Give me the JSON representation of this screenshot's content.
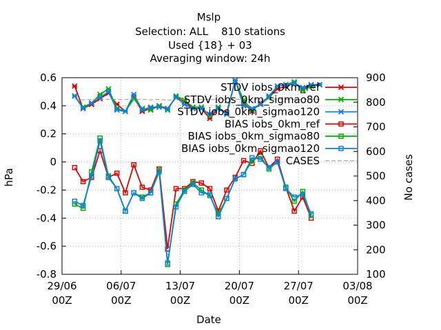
{
  "chart_data": {
    "type": "line",
    "title": "Mslp",
    "subtitle_lines": [
      "Selection: ALL    810 stations",
      "Used {18} + 03",
      "Averaging window: 24h"
    ],
    "xlabel": "Date",
    "ylabel": "hPa",
    "y2label": "No cases",
    "ylim": [
      -0.8,
      0.6
    ],
    "y2lim": [
      100,
      900
    ],
    "yticks": [
      "0.6",
      "0.4",
      "0.2",
      "0",
      "-0.2",
      "-0.4",
      "-0.6",
      "-0.8"
    ],
    "y2ticks": [
      "900",
      "800",
      "700",
      "600",
      "500",
      "400",
      "300",
      "200",
      "100"
    ],
    "xticks": [
      {
        "line1": "29/06",
        "line2": "00Z"
      },
      {
        "line1": "06/07",
        "line2": "00Z"
      },
      {
        "line1": "13/07",
        "line2": "00Z"
      },
      {
        "line1": "20/07",
        "line2": "00Z"
      },
      {
        "line1": "27/07",
        "line2": "00Z"
      },
      {
        "line1": "03/08",
        "line2": "00Z"
      }
    ],
    "xlim": [
      0,
      35
    ],
    "x": [
      1.5,
      2.5,
      3.5,
      4.5,
      5.5,
      6.5,
      7.5,
      8.5,
      9.5,
      10.5,
      11.5,
      12.5,
      13.5,
      14.5,
      15.5,
      16.5,
      17.5,
      18.5,
      19.5,
      20.5,
      21.5,
      22.5,
      23.5,
      24.5,
      25.5,
      26.5,
      27.5,
      28.5,
      29.5,
      30.5
    ],
    "grid": true,
    "legend_position": "top-right",
    "series": [
      {
        "name": "STDV iobs_0km_ref",
        "color": "#e00000",
        "marker": "star",
        "axis": "left",
        "values": [
          0.54,
          0.38,
          0.41,
          0.45,
          0.49,
          0.41,
          0.36,
          0.46,
          0.36,
          0.38,
          0.4,
          0.38,
          0.46,
          0.43,
          0.38,
          0.38,
          0.31,
          0.38,
          0.35,
          0.58,
          0.42,
          0.36,
          0.42,
          0.46,
          0.52,
          0.54,
          0.56,
          0.52,
          0.55,
          0.55
        ]
      },
      {
        "name": "STDV iobs_0km_sigmao80",
        "color": "#00b000",
        "marker": "star",
        "axis": "left",
        "values": [
          0.47,
          0.39,
          0.42,
          0.48,
          0.52,
          0.38,
          0.36,
          0.45,
          0.38,
          0.37,
          0.4,
          0.37,
          0.47,
          0.44,
          0.39,
          0.39,
          0.33,
          0.39,
          0.34,
          0.58,
          0.44,
          0.37,
          0.41,
          0.46,
          0.54,
          0.55,
          0.57,
          0.51,
          0.54,
          0.55
        ]
      },
      {
        "name": "STDV iobs_0km_sigmao120",
        "color": "#1080e0",
        "marker": "star",
        "axis": "left",
        "values": [
          0.47,
          0.38,
          0.42,
          0.46,
          0.5,
          0.37,
          0.36,
          0.48,
          0.37,
          0.39,
          0.39,
          0.38,
          0.46,
          0.41,
          0.38,
          0.38,
          0.34,
          0.38,
          0.34,
          0.58,
          0.4,
          0.38,
          0.41,
          0.47,
          0.54,
          0.55,
          0.56,
          0.53,
          0.55,
          0.55
        ]
      },
      {
        "name": "BIAS iobs_0km_ref",
        "color": "#e00000",
        "marker": "square",
        "axis": "left",
        "values": [
          -0.04,
          -0.14,
          -0.11,
          0.08,
          -0.11,
          -0.08,
          -0.22,
          -0.02,
          -0.18,
          -0.2,
          -0.05,
          -0.62,
          -0.19,
          -0.19,
          -0.14,
          -0.15,
          -0.19,
          -0.35,
          -0.2,
          -0.11,
          0.01,
          -0.01,
          0.08,
          -0.04,
          0.02,
          -0.18,
          -0.35,
          -0.25,
          -0.4,
          null
        ]
      },
      {
        "name": "BIAS iobs_0km_sigmao80",
        "color": "#00b000",
        "marker": "square",
        "axis": "left",
        "values": [
          -0.3,
          -0.33,
          -0.07,
          0.17,
          -0.1,
          -0.19,
          -0.35,
          -0.22,
          -0.25,
          -0.22,
          -0.06,
          -0.73,
          -0.3,
          -0.2,
          -0.15,
          -0.2,
          -0.24,
          -0.37,
          -0.26,
          -0.12,
          -0.09,
          0.01,
          0.04,
          -0.05,
          0.0,
          -0.18,
          -0.28,
          -0.21,
          -0.38,
          null
        ]
      },
      {
        "name": "BIAS iobs_0km_sigmao120",
        "color": "#1080e0",
        "marker": "square",
        "axis": "left",
        "values": [
          -0.28,
          -0.31,
          -0.1,
          0.15,
          -0.11,
          -0.19,
          -0.35,
          -0.22,
          -0.26,
          -0.22,
          -0.07,
          -0.72,
          -0.32,
          -0.21,
          -0.16,
          -0.22,
          -0.23,
          -0.39,
          -0.26,
          -0.12,
          -0.09,
          0.03,
          0.02,
          -0.04,
          0.0,
          -0.19,
          -0.25,
          -0.23,
          -0.37,
          null
        ]
      },
      {
        "name": "CASES",
        "color": "#999999",
        "marker": "none",
        "axis": "right",
        "dashed": true,
        "values": [
          812,
          810,
          812,
          811,
          812,
          812,
          811,
          813,
          812,
          810,
          812,
          808,
          811,
          812,
          810,
          811,
          812,
          810,
          811,
          812,
          813,
          812,
          811,
          812,
          813,
          812,
          812,
          811,
          812,
          812
        ]
      }
    ]
  }
}
